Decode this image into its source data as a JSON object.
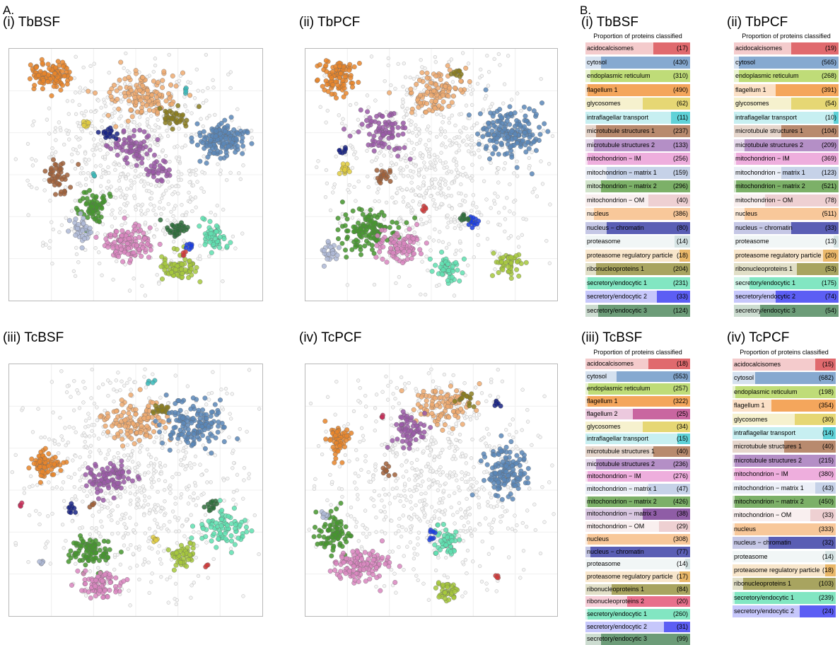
{
  "labels": {
    "section_a": "A.",
    "section_b": "B."
  },
  "colors": {
    "acidocalcisomes": "#e06a6e",
    "cytosol": "#86a9d0",
    "endoplasmic reticulum": "#bfdc78",
    "flagellum 1": "#f4a65c",
    "flagellum 2": "#c966a0",
    "glycosomes": "#e6d774",
    "intraflagellar transport": "#5fd2d8",
    "microtubule structures 1": "#b88a6e",
    "microtubule structures 2": "#b48fc6",
    "mitochondrion − IM": "#eeaedd",
    "mitochondrion − matrix 1": "#c6d2e8",
    "mitochondrion − matrix 2": "#7cb068",
    "mitochondrion − matrix 3": "#8f5da6",
    "mitochondrion − OM": "#eed0d2",
    "nucleus": "#f8c89a",
    "nucleus − chromatin": "#5a5eb4",
    "proteasome": "#d6e4e4",
    "proteasome regulatory particle": "#eab86a",
    "ribonucleoproteins 1": "#a8a460",
    "ribonucleoproteins 2": "#e8708c",
    "secretory/endocytic 1": "#82e6c2",
    "secretory/endocytic 2": "#5c5ef4",
    "secretory/endocytic 3": "#6c9c78"
  },
  "scatter_panels": [
    {
      "id": "i",
      "title": "(i) TbBSF"
    },
    {
      "id": "ii",
      "title": "(ii) TbPCF"
    },
    {
      "id": "iii",
      "title": "(iii) TcBSF"
    },
    {
      "id": "iv",
      "title": "(iv) TcPCF"
    }
  ],
  "chart_data": [
    {
      "type": "bar",
      "title": "(i) TbBSF",
      "subtitle": "Proportion of proteins classified",
      "categories": [
        "acidocalcisomes",
        "cytosol",
        "endoplasmic reticulum",
        "flagellum 1",
        "glycosomes",
        "intraflagellar transport",
        "microtubule structures 1",
        "microtubule structures 2",
        "mitochondrion − IM",
        "mitochondrion − matrix 1",
        "mitochondrion − matrix 2",
        "mitochondrion − OM",
        "nucleus",
        "nucleus − chromatin",
        "proteasome",
        "proteasome regulatory particle",
        "ribonucleoproteins 1",
        "secretory/endocytic 1",
        "secretory/endocytic 2",
        "secretory/endocytic 3"
      ],
      "counts": [
        "(17)",
        "(430)",
        "(310)",
        "(490)",
        "(62)",
        "(11)",
        "(237)",
        "(133)",
        "(256)",
        "(159)",
        "(296)",
        "(40)",
        "(386)",
        "(80)",
        "(14)",
        "(18)",
        "(204)",
        "(231)",
        "(33)",
        "(124)"
      ],
      "values": [
        0.35,
        0.85,
        0.95,
        0.98,
        0.45,
        0.18,
        0.9,
        0.92,
        0.98,
        0.8,
        0.85,
        0.4,
        0.92,
        0.8,
        0.15,
        0.1,
        0.9,
        0.98,
        0.32,
        0.88
      ]
    },
    {
      "type": "bar",
      "title": "(ii) TbPCF",
      "subtitle": "Proportion of proteins classified",
      "categories": [
        "acidocalcisomes",
        "cytosol",
        "endoplasmic reticulum",
        "flagellum 1",
        "glycosomes",
        "intraflagellar transport",
        "microtubule structures 1",
        "microtubule structures 2",
        "mitochondrion − IM",
        "mitochondrion − matrix 1",
        "mitochondrion − matrix 2",
        "mitochondrion − OM",
        "nucleus",
        "nucleus − chromatin",
        "proteasome",
        "proteasome regulatory particle",
        "ribonucleoproteins 1",
        "secretory/endocytic 1",
        "secretory/endocytic 2",
        "secretory/endocytic 3"
      ],
      "counts": [
        "(19)",
        "(565)",
        "(268)",
        "(391)",
        "(54)",
        "(10)",
        "(104)",
        "(209)",
        "(369)",
        "(123)",
        "(521)",
        "(78)",
        "(511)",
        "(33)",
        "(13)",
        "(20)",
        "(53)",
        "(175)",
        "(74)",
        "(54)"
      ],
      "values": [
        0.45,
        0.95,
        0.95,
        0.6,
        0.45,
        0.05,
        0.55,
        0.9,
        0.98,
        0.55,
        0.98,
        0.7,
        0.9,
        0.45,
        0.05,
        0.15,
        0.4,
        0.85,
        0.6,
        0.75
      ]
    },
    {
      "type": "bar",
      "title": "(iii) TcBSF",
      "subtitle": "Proportion of proteins classified",
      "categories": [
        "acidocalcisomes",
        "cytosol",
        "endoplasmic reticulum",
        "flagellum 1",
        "flagellum 2",
        "glycosomes",
        "intraflagellar transport",
        "microtubule structures 1",
        "microtubule structures 2",
        "mitochondrion − IM",
        "mitochondrion − matrix 1",
        "mitochondrion − matrix 2",
        "mitochondrion − matrix 3",
        "mitochondrion − OM",
        "nucleus",
        "nucleus − chromatin",
        "proteasome",
        "proteasome regulatory particle",
        "ribonucleoproteins 1",
        "ribonucleoproteins 2",
        "secretory/endocytic 1",
        "secretory/endocytic 2",
        "secretory/endocytic 3"
      ],
      "counts": [
        "(18)",
        "(553)",
        "(257)",
        "(322)",
        "(25)",
        "(34)",
        "(15)",
        "(40)",
        "(236)",
        "(276)",
        "(47)",
        "(426)",
        "(38)",
        "(29)",
        "(308)",
        "(77)",
        "(14)",
        "(17)",
        "(84)",
        "(20)",
        "(260)",
        "(31)",
        "(99)"
      ],
      "values": [
        0.4,
        0.7,
        0.97,
        0.98,
        0.55,
        0.45,
        0.12,
        0.35,
        0.9,
        0.98,
        0.4,
        0.98,
        0.45,
        0.3,
        0.98,
        0.95,
        0.05,
        0.1,
        0.75,
        0.6,
        0.98,
        0.25,
        0.85
      ]
    },
    {
      "type": "bar",
      "title": "(iv) TcPCF",
      "subtitle": "Proportion of proteins classified",
      "categories": [
        "acidocalcisomes",
        "cytosol",
        "endoplasmic reticulum",
        "flagellum 1",
        "glycosomes",
        "intraflagellar transport",
        "microtubule structures 1",
        "microtubule structures 2",
        "mitochondrion − IM",
        "mitochondrion − matrix 1",
        "mitochondrion − matrix 2",
        "mitochondrion − OM",
        "nucleus",
        "nucleus − chromatin",
        "proteasome",
        "proteasome regulatory particle",
        "ribonucleoproteins 1",
        "secretory/endocytic 1",
        "secretory/endocytic 2"
      ],
      "counts": [
        "(15)",
        "(682)",
        "(198)",
        "(354)",
        "(30)",
        "(14)",
        "(40)",
        "(215)",
        "(380)",
        "(43)",
        "(450)",
        "(33)",
        "(333)",
        "(32)",
        "(14)",
        "(18)",
        "(103)",
        "(239)",
        "(24)"
      ],
      "values": [
        0.2,
        0.78,
        0.97,
        0.62,
        0.4,
        0.12,
        0.5,
        0.98,
        0.98,
        0.2,
        0.98,
        0.25,
        0.98,
        0.65,
        0.1,
        0.1,
        0.9,
        0.98,
        0.35
      ]
    }
  ]
}
